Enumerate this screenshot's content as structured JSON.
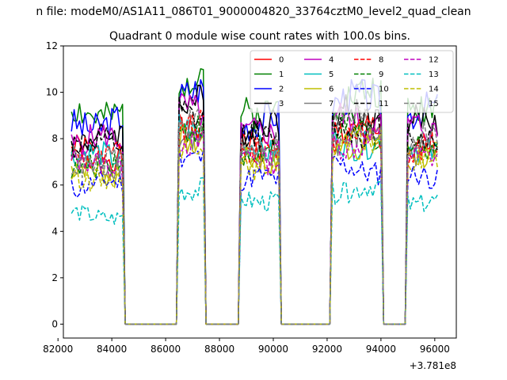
{
  "suptitle": "n file: modeM0/AS1A11_086T01_9000004820_33764cztM0_level2_quad_clean",
  "chart_data": {
    "type": "line",
    "title": "Quadrant 0 module wise count rates with 100.0s bins.",
    "xlabel": "",
    "ylabel": "",
    "offset_label": "+3.781e8",
    "xlim": [
      82200,
      96800
    ],
    "ylim": [
      -0.6,
      12.0
    ],
    "x_ticks": [
      82000,
      84000,
      86000,
      88000,
      90000,
      92000,
      94000,
      96000
    ],
    "x_tick_labels": [
      "82000",
      "84000",
      "86000",
      "88000",
      "90000",
      "92000",
      "94000",
      "96000"
    ],
    "y_ticks": [
      0,
      2,
      4,
      6,
      8,
      10,
      12
    ],
    "y_tick_labels": [
      "0",
      "2",
      "4",
      "6",
      "8",
      "10",
      "12"
    ],
    "bin_seconds": 100,
    "grid": false,
    "legend_position": "top-right",
    "legend_columns": 4,
    "on_intervals": [
      [
        82500,
        84400
      ],
      [
        86500,
        87400
      ],
      [
        88800,
        90200
      ],
      [
        92200,
        94000
      ],
      [
        95000,
        96100
      ]
    ],
    "on_intervals_note": "count rates drop to 0 outside these intervals",
    "series": [
      {
        "name": "0",
        "color": "#ff0000",
        "dash": "solid",
        "levels": [
          7.4,
          8.6,
          7.8,
          8.4,
          7.6
        ]
      },
      {
        "name": "1",
        "color": "#008000",
        "dash": "solid",
        "levels": [
          9.1,
          10.9,
          9.3,
          9.8,
          9.4
        ]
      },
      {
        "name": "2",
        "color": "#0000ff",
        "dash": "solid",
        "levels": [
          8.7,
          9.9,
          8.8,
          9.6,
          9.1
        ]
      },
      {
        "name": "3",
        "color": "#000000",
        "dash": "solid",
        "levels": [
          8.0,
          9.4,
          8.5,
          9.0,
          8.6
        ]
      },
      {
        "name": "4",
        "color": "#bf00bf",
        "dash": "solid",
        "levels": [
          7.9,
          9.1,
          8.1,
          8.8,
          8.4
        ]
      },
      {
        "name": "5",
        "color": "#00bfbf",
        "dash": "solid",
        "levels": [
          7.2,
          8.4,
          7.5,
          7.9,
          7.6
        ]
      },
      {
        "name": "6",
        "color": "#bfbf00",
        "dash": "solid",
        "levels": [
          6.6,
          8.1,
          7.1,
          7.8,
          7.4
        ]
      },
      {
        "name": "7",
        "color": "#808080",
        "dash": "solid",
        "levels": [
          7.0,
          8.2,
          7.3,
          8.0,
          7.6
        ]
      },
      {
        "name": "8",
        "color": "#ff0000",
        "dash": "dashed",
        "levels": [
          7.3,
          8.4,
          7.6,
          8.1,
          7.5
        ]
      },
      {
        "name": "9",
        "color": "#008000",
        "dash": "dashed",
        "levels": [
          6.9,
          8.2,
          7.2,
          8.3,
          7.5
        ]
      },
      {
        "name": "10",
        "color": "#0000ff",
        "dash": "dashed",
        "levels": [
          6.0,
          7.1,
          6.2,
          6.7,
          6.3
        ]
      },
      {
        "name": "11",
        "color": "#000000",
        "dash": "dashed",
        "levels": [
          7.7,
          8.9,
          8.0,
          8.5,
          8.1
        ]
      },
      {
        "name": "12",
        "color": "#bf00bf",
        "dash": "dashed",
        "levels": [
          6.9,
          8.0,
          7.2,
          7.9,
          7.4
        ]
      },
      {
        "name": "13",
        "color": "#00bfbf",
        "dash": "dashed",
        "levels": [
          4.7,
          5.9,
          5.4,
          5.8,
          5.3
        ]
      },
      {
        "name": "14",
        "color": "#bfbf00",
        "dash": "dashed",
        "levels": [
          6.4,
          7.8,
          6.9,
          7.7,
          7.1
        ]
      },
      {
        "name": "15",
        "color": "#808080",
        "dash": "dashed",
        "levels": [
          7.0,
          8.5,
          7.6,
          8.7,
          7.9
        ]
      }
    ]
  }
}
